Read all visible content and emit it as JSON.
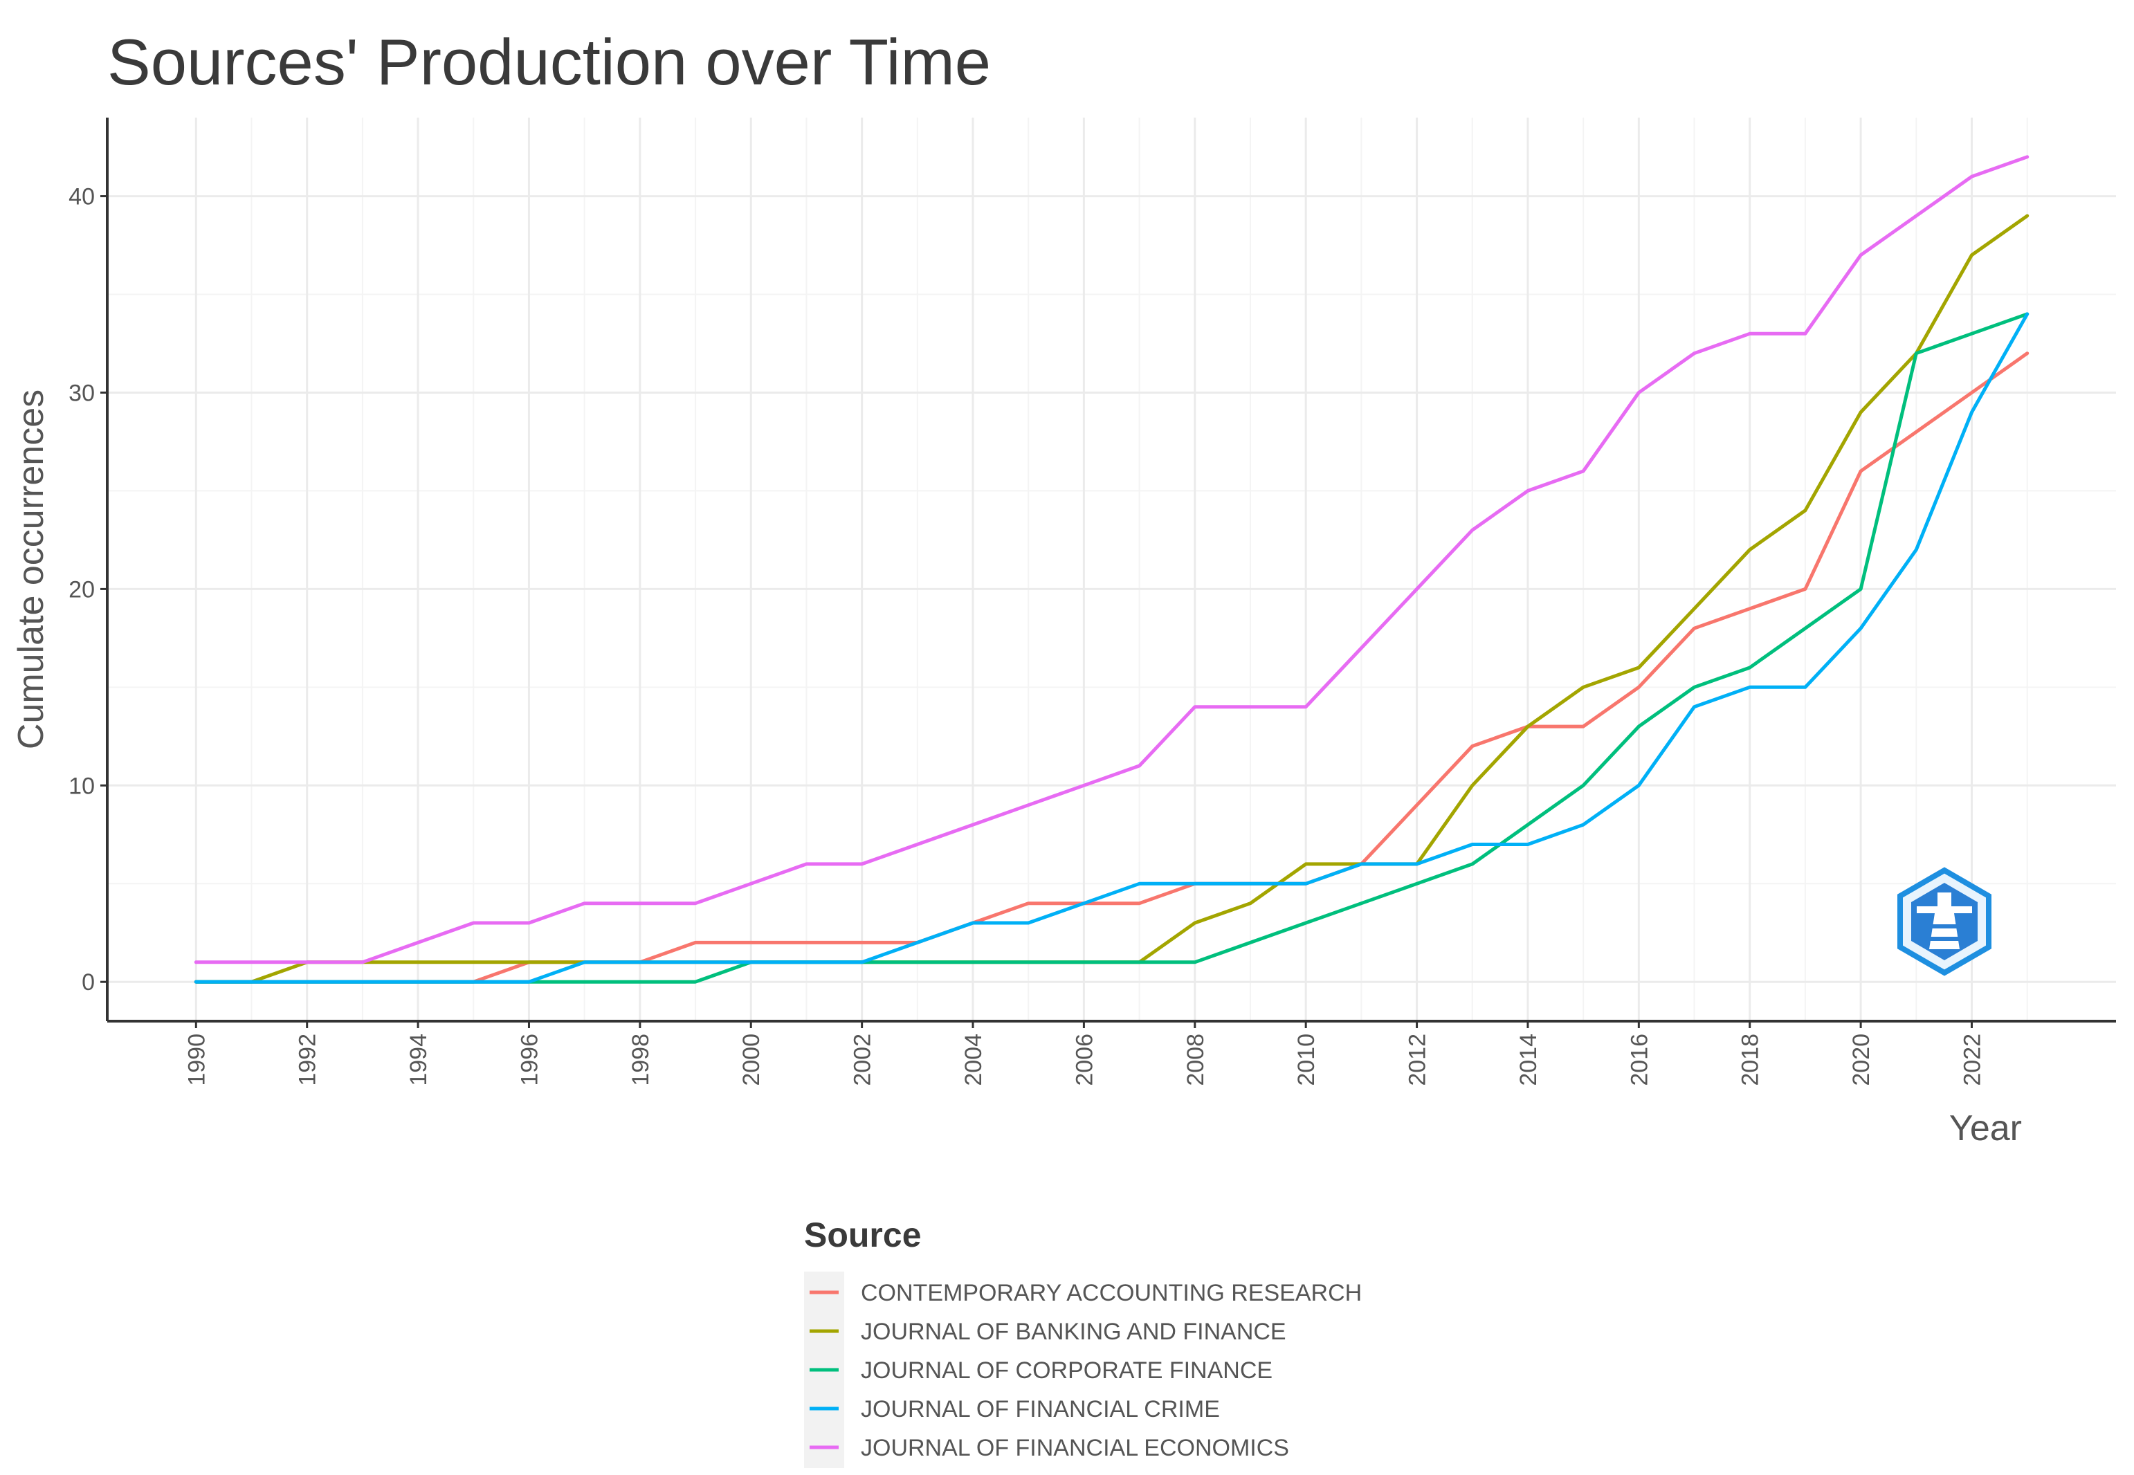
{
  "chart_data": {
    "type": "line",
    "title": "Sources' Production over Time",
    "xlabel": "Year",
    "ylabel": "Cumulate occurrences",
    "xlim": [
      1988.4,
      2024.6
    ],
    "ylim": [
      -2,
      44
    ],
    "x_ticks": [
      1990,
      1992,
      1994,
      1996,
      1998,
      2000,
      2002,
      2004,
      2006,
      2008,
      2010,
      2012,
      2014,
      2016,
      2018,
      2020,
      2022
    ],
    "y_ticks": [
      0,
      10,
      20,
      30,
      40
    ],
    "grid": true,
    "legend_title": "Source",
    "legend_position": "bottom",
    "x": [
      1990,
      1991,
      1992,
      1993,
      1994,
      1995,
      1996,
      1997,
      1998,
      1999,
      2000,
      2001,
      2002,
      2003,
      2004,
      2005,
      2006,
      2007,
      2008,
      2009,
      2010,
      2011,
      2012,
      2013,
      2014,
      2015,
      2016,
      2017,
      2018,
      2019,
      2020,
      2021,
      2022,
      2023
    ],
    "series": [
      {
        "name": "CONTEMPORARY ACCOUNTING RESEARCH",
        "color": "#F8766D",
        "values": [
          0,
          0,
          0,
          0,
          0,
          0,
          1,
          1,
          1,
          2,
          2,
          2,
          2,
          2,
          3,
          4,
          4,
          4,
          5,
          5,
          5,
          6,
          9,
          12,
          13,
          13,
          15,
          18,
          19,
          20,
          26,
          28,
          30,
          32
        ]
      },
      {
        "name": "JOURNAL OF BANKING AND FINANCE",
        "color": "#A3A500",
        "values": [
          0,
          0,
          1,
          1,
          1,
          1,
          1,
          1,
          1,
          1,
          1,
          1,
          1,
          1,
          1,
          1,
          1,
          1,
          3,
          4,
          6,
          6,
          6,
          10,
          13,
          15,
          16,
          19,
          22,
          24,
          29,
          32,
          37,
          39
        ]
      },
      {
        "name": "JOURNAL OF CORPORATE FINANCE",
        "color": "#00BF7D",
        "values": [
          0,
          0,
          0,
          0,
          0,
          0,
          0,
          0,
          0,
          0,
          1,
          1,
          1,
          1,
          1,
          1,
          1,
          1,
          1,
          2,
          3,
          4,
          5,
          6,
          8,
          10,
          13,
          15,
          16,
          18,
          20,
          32,
          33,
          34
        ]
      },
      {
        "name": "JOURNAL OF FINANCIAL CRIME",
        "color": "#00B0F6",
        "values": [
          0,
          0,
          0,
          0,
          0,
          0,
          0,
          1,
          1,
          1,
          1,
          1,
          1,
          2,
          3,
          3,
          4,
          5,
          5,
          5,
          5,
          6,
          6,
          7,
          7,
          8,
          10,
          14,
          15,
          15,
          18,
          22,
          29,
          34
        ]
      },
      {
        "name": "JOURNAL OF FINANCIAL ECONOMICS",
        "color": "#E76BF3",
        "values": [
          1,
          1,
          1,
          1,
          2,
          3,
          3,
          4,
          4,
          4,
          5,
          6,
          6,
          7,
          8,
          9,
          10,
          11,
          14,
          14,
          14,
          17,
          20,
          23,
          25,
          26,
          30,
          32,
          33,
          33,
          37,
          39,
          41,
          42
        ]
      }
    ]
  },
  "logo_icon": "lighthouse-hexagon-icon"
}
